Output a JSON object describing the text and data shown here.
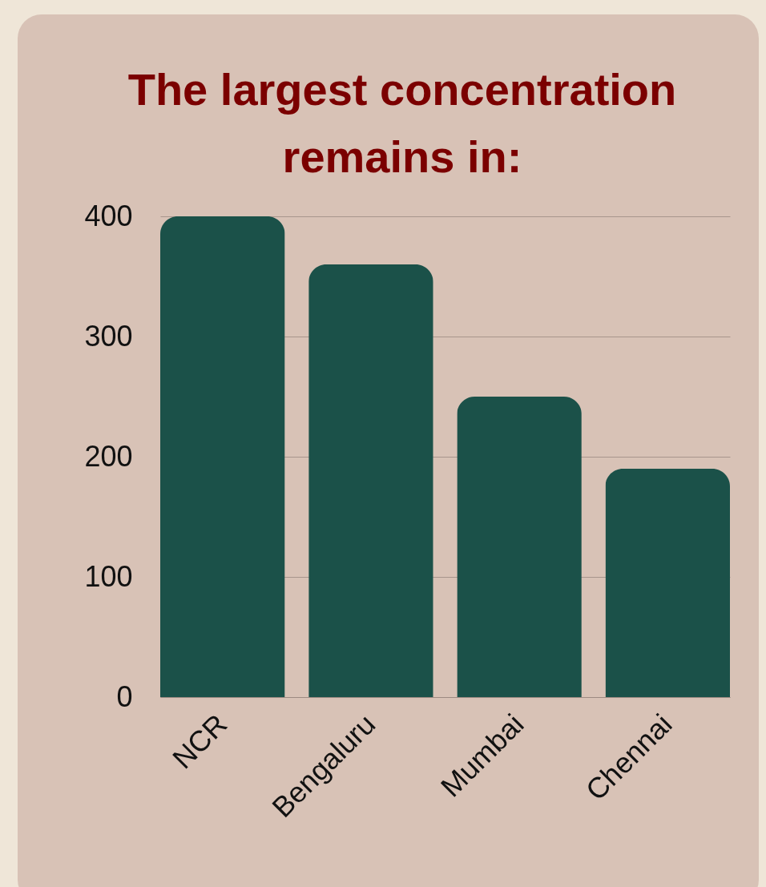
{
  "chart_data": {
    "type": "bar",
    "title": "The largest concentration remains in:",
    "categories": [
      "NCR",
      "Bengaluru",
      "Mumbai",
      "Chennai"
    ],
    "values": [
      400,
      360,
      250,
      190
    ],
    "color": "#1b5149",
    "ylim": [
      0,
      400
    ],
    "yticks": [
      0,
      100,
      200,
      300,
      400
    ],
    "grid": "y"
  }
}
